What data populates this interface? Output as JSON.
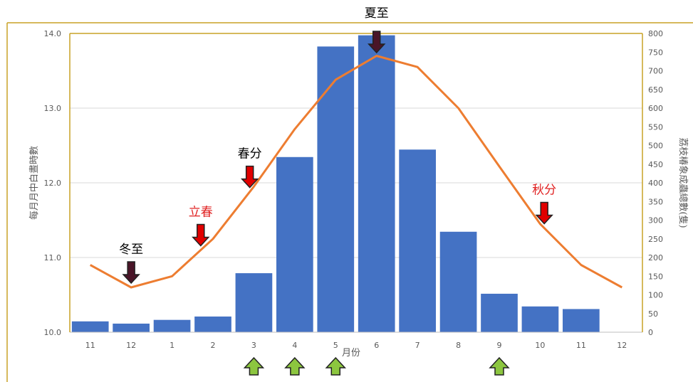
{
  "chart_data": {
    "type": "bar",
    "categories": [
      "11",
      "12",
      "1",
      "2",
      "3",
      "4",
      "5",
      "6",
      "7",
      "8",
      "9",
      "10",
      "11",
      "12"
    ],
    "xlabel": "月份",
    "series": [
      {
        "kind": "bar",
        "axis": "right",
        "color": "#4472C4",
        "values": [
          29,
          23,
          33,
          42,
          158,
          469,
          765,
          795,
          489,
          269,
          103,
          69,
          62,
          null
        ]
      },
      {
        "kind": "line",
        "axis": "left",
        "color": "#ED7D31",
        "values": [
          10.9,
          10.6,
          10.75,
          11.25,
          11.95,
          12.72,
          13.38,
          13.7,
          13.55,
          13.0,
          12.22,
          11.45,
          10.9,
          10.6
        ]
      }
    ],
    "y_left": {
      "label": "每月月中白晝時數",
      "lim": [
        10.0,
        14.0
      ],
      "ticks": [
        "10.0",
        "11.0",
        "12.0",
        "13.0",
        "14.0"
      ]
    },
    "y_right": {
      "label": "荔枝椿象成蟲總數(隻)",
      "lim": [
        0,
        800
      ],
      "ticks": [
        "0",
        "50",
        "100",
        "150",
        "200",
        "250",
        "300",
        "350",
        "400",
        "450",
        "500",
        "550",
        "600",
        "650",
        "700",
        "750",
        "800"
      ]
    },
    "grid": true,
    "annotations": [
      {
        "text": "冬至",
        "color": "#000000",
        "arrow": "down",
        "arrow_color": "#4A1528",
        "category_index": 1
      },
      {
        "text": "立春",
        "color": "#E02020",
        "arrow": "down",
        "arrow_color": "#E00000",
        "category_index": 2.7
      },
      {
        "text": "春分",
        "color": "#000000",
        "arrow": "down",
        "arrow_color": "#E00000",
        "category_index": 3.9
      },
      {
        "text": "夏至",
        "color": "#000000",
        "arrow": "down",
        "arrow_color": "#4A1528",
        "category_index": 7
      },
      {
        "text": "秋分",
        "color": "#E02020",
        "arrow": "down",
        "arrow_color": "#E00000",
        "category_index": 11.1
      }
    ],
    "up_arrows": {
      "color": "#8CC63F",
      "category_indices": [
        4,
        5,
        6,
        10
      ]
    }
  }
}
